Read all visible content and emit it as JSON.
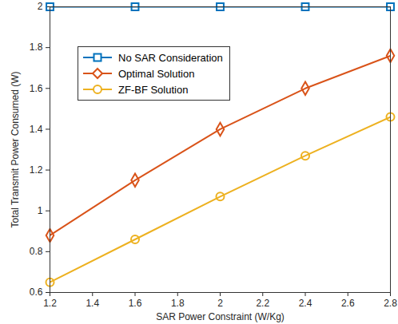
{
  "chart_data": {
    "type": "line",
    "x_label": "SAR Power Constraint (W/Kg)",
    "y_label": "Total Transmit Power Consumed (W)",
    "x": [
      1.2,
      1.6,
      2,
      2.4,
      2.8
    ],
    "series": [
      {
        "name": "No SAR Consideration",
        "color": "#0072BD",
        "marker": "square",
        "values": [
          2,
          2,
          2,
          2,
          2
        ]
      },
      {
        "name": "Optimal Solution",
        "color": "#D95319",
        "marker": "diamond",
        "values": [
          0.88,
          1.15,
          1.4,
          1.6,
          1.76
        ]
      },
      {
        "name": "ZF-BF Solution",
        "color": "#EDB120",
        "marker": "circle",
        "values": [
          0.65,
          0.86,
          1.07,
          1.27,
          1.46
        ]
      }
    ],
    "xlim": [
      1.2,
      2.8
    ],
    "xticks": [
      1.2,
      1.4,
      1.6,
      1.8,
      2,
      2.2,
      2.4,
      2.6,
      2.8
    ],
    "ylim": [
      0.6,
      2
    ],
    "yticks": [
      0.6,
      0.8,
      1,
      1.2,
      1.4,
      1.6,
      1.8,
      2
    ],
    "grid": false,
    "legend": "upper left"
  }
}
